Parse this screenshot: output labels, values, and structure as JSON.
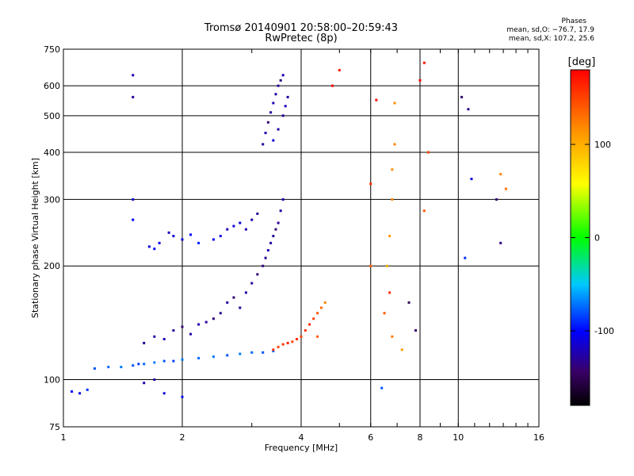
{
  "header": {
    "title": "Tromsø 20140901 20:58:00–20:59:43",
    "subtitle": "RwPretec (8p)"
  },
  "stats": {
    "heading": "Phases",
    "line_o": "mean, sd,O: −76.7, 17.9",
    "line_x": "mean, sd,X: 107.2, 25.6"
  },
  "chart_data": {
    "type": "scatter",
    "xlabel": "Frequency [MHz]",
    "ylabel": "Stationary phase Virtual Height [km]",
    "x_scale": "log",
    "y_scale": "log",
    "xlim": [
      1,
      16
    ],
    "ylim": [
      75,
      750
    ],
    "x_ticks": [
      1,
      2,
      4,
      6,
      8,
      10,
      16
    ],
    "y_ticks": [
      75,
      100,
      200,
      300,
      400,
      500,
      600,
      750
    ],
    "grid": true,
    "colorbar": {
      "label": "[deg]",
      "min": -180,
      "max": 180,
      "ticks": [
        -100,
        0,
        100
      ]
    },
    "series": [
      {
        "points": [
          [
            1.05,
            93,
            -100
          ],
          [
            1.1,
            92,
            -110
          ],
          [
            1.15,
            94,
            -90
          ],
          [
            1.2,
            107,
            -80
          ],
          [
            1.3,
            108,
            -75
          ],
          [
            1.4,
            108,
            -70
          ],
          [
            1.5,
            109,
            -80
          ],
          [
            1.55,
            110,
            -85
          ],
          [
            1.6,
            110,
            -75
          ],
          [
            1.7,
            111,
            -70
          ],
          [
            1.8,
            112,
            -80
          ],
          [
            1.9,
            112,
            -85
          ],
          [
            2.0,
            113,
            -70
          ],
          [
            2.2,
            114,
            -75
          ],
          [
            2.4,
            115,
            -70
          ],
          [
            2.6,
            116,
            -80
          ],
          [
            2.8,
            117,
            -70
          ],
          [
            3.0,
            118,
            -75
          ],
          [
            3.2,
            118,
            -80
          ],
          [
            3.4,
            119,
            -75
          ],
          [
            1.5,
            640,
            -120
          ],
          [
            1.5,
            560,
            -130
          ],
          [
            1.5,
            300,
            -110
          ],
          [
            1.5,
            265,
            -100
          ],
          [
            1.6,
            98,
            -120
          ],
          [
            1.7,
            100,
            -125
          ],
          [
            1.8,
            92,
            -110
          ],
          [
            2.0,
            90,
            -100
          ]
        ]
      },
      {
        "points": [
          [
            1.6,
            125,
            -130
          ],
          [
            1.7,
            130,
            -125
          ],
          [
            1.8,
            128,
            -120
          ],
          [
            1.9,
            135,
            -130
          ],
          [
            2.0,
            138,
            -140
          ],
          [
            2.1,
            132,
            -125
          ],
          [
            2.2,
            140,
            -120
          ],
          [
            2.3,
            142,
            -130
          ],
          [
            2.4,
            145,
            -135
          ],
          [
            2.5,
            150,
            -130
          ],
          [
            2.6,
            160,
            -125
          ],
          [
            2.7,
            165,
            -140
          ],
          [
            2.8,
            155,
            -130
          ],
          [
            2.9,
            170,
            -125
          ],
          [
            3.0,
            180,
            -130
          ],
          [
            3.1,
            190,
            -140
          ],
          [
            3.2,
            200,
            -135
          ],
          [
            3.25,
            210,
            -130
          ],
          [
            3.3,
            220,
            -120
          ],
          [
            3.35,
            230,
            -125
          ],
          [
            3.4,
            240,
            -130
          ],
          [
            3.45,
            250,
            -140
          ],
          [
            3.5,
            260,
            -130
          ],
          [
            3.55,
            280,
            -125
          ],
          [
            3.6,
            300,
            -120
          ]
        ]
      },
      {
        "points": [
          [
            1.65,
            225,
            -110
          ],
          [
            1.7,
            222,
            -100
          ],
          [
            1.75,
            230,
            -105
          ],
          [
            1.85,
            245,
            -120
          ],
          [
            1.9,
            240,
            -115
          ],
          [
            2.0,
            235,
            -110
          ],
          [
            2.1,
            242,
            -100
          ],
          [
            2.2,
            230,
            -95
          ],
          [
            2.4,
            235,
            -105
          ],
          [
            2.5,
            240,
            -110
          ],
          [
            2.6,
            250,
            -120
          ],
          [
            2.7,
            255,
            -115
          ],
          [
            2.8,
            260,
            -110
          ],
          [
            2.9,
            250,
            -120
          ],
          [
            3.0,
            265,
            -125
          ],
          [
            3.1,
            275,
            -130
          ]
        ]
      },
      {
        "points": [
          [
            3.2,
            420,
            -130
          ],
          [
            3.25,
            450,
            -125
          ],
          [
            3.3,
            480,
            -140
          ],
          [
            3.35,
            510,
            -130
          ],
          [
            3.4,
            540,
            -120
          ],
          [
            3.45,
            570,
            -125
          ],
          [
            3.5,
            600,
            -130
          ],
          [
            3.55,
            620,
            -135
          ],
          [
            3.6,
            640,
            -120
          ],
          [
            3.4,
            430,
            -110
          ],
          [
            3.5,
            460,
            -125
          ],
          [
            3.6,
            500,
            -130
          ],
          [
            3.65,
            530,
            -120
          ],
          [
            3.7,
            560,
            -125
          ]
        ]
      },
      {
        "points": [
          [
            3.4,
            120,
            160
          ],
          [
            3.5,
            122,
            150
          ],
          [
            3.6,
            124,
            155
          ],
          [
            3.7,
            125,
            165
          ],
          [
            3.8,
            126,
            150
          ],
          [
            3.9,
            128,
            160
          ],
          [
            4.0,
            130,
            150
          ],
          [
            4.1,
            135,
            155
          ],
          [
            4.2,
            140,
            160
          ],
          [
            4.3,
            145,
            150
          ],
          [
            4.4,
            150,
            140
          ],
          [
            4.5,
            155,
            130
          ],
          [
            4.6,
            160,
            120
          ],
          [
            4.4,
            130,
            140
          ]
        ]
      },
      {
        "points": [
          [
            6.4,
            95,
            -80
          ],
          [
            6.6,
            200,
            100
          ],
          [
            6.7,
            240,
            110
          ],
          [
            6.8,
            300,
            120
          ],
          [
            6.8,
            360,
            115
          ],
          [
            6.9,
            420,
            120
          ],
          [
            6.9,
            540,
            115
          ],
          [
            6.7,
            170,
            160
          ],
          [
            6.5,
            150,
            140
          ],
          [
            6.8,
            130,
            125
          ],
          [
            7.2,
            120,
            110
          ],
          [
            6.0,
            200,
            135
          ],
          [
            6.0,
            330,
            160
          ],
          [
            5.0,
            660,
            170
          ],
          [
            4.8,
            600,
            180
          ],
          [
            6.2,
            550,
            175
          ],
          [
            8.0,
            620,
            180
          ],
          [
            8.2,
            690,
            170
          ],
          [
            8.4,
            400,
            150
          ],
          [
            10.2,
            560,
            -140
          ],
          [
            10.6,
            520,
            -135
          ],
          [
            12.8,
            350,
            120
          ],
          [
            13.2,
            320,
            130
          ],
          [
            12.5,
            300,
            -140
          ],
          [
            12.8,
            230,
            -135
          ],
          [
            7.5,
            160,
            -150
          ],
          [
            7.8,
            135,
            -145
          ],
          [
            8.2,
            280,
            140
          ],
          [
            10.8,
            340,
            -110
          ],
          [
            10.4,
            210,
            -90
          ]
        ]
      }
    ]
  }
}
